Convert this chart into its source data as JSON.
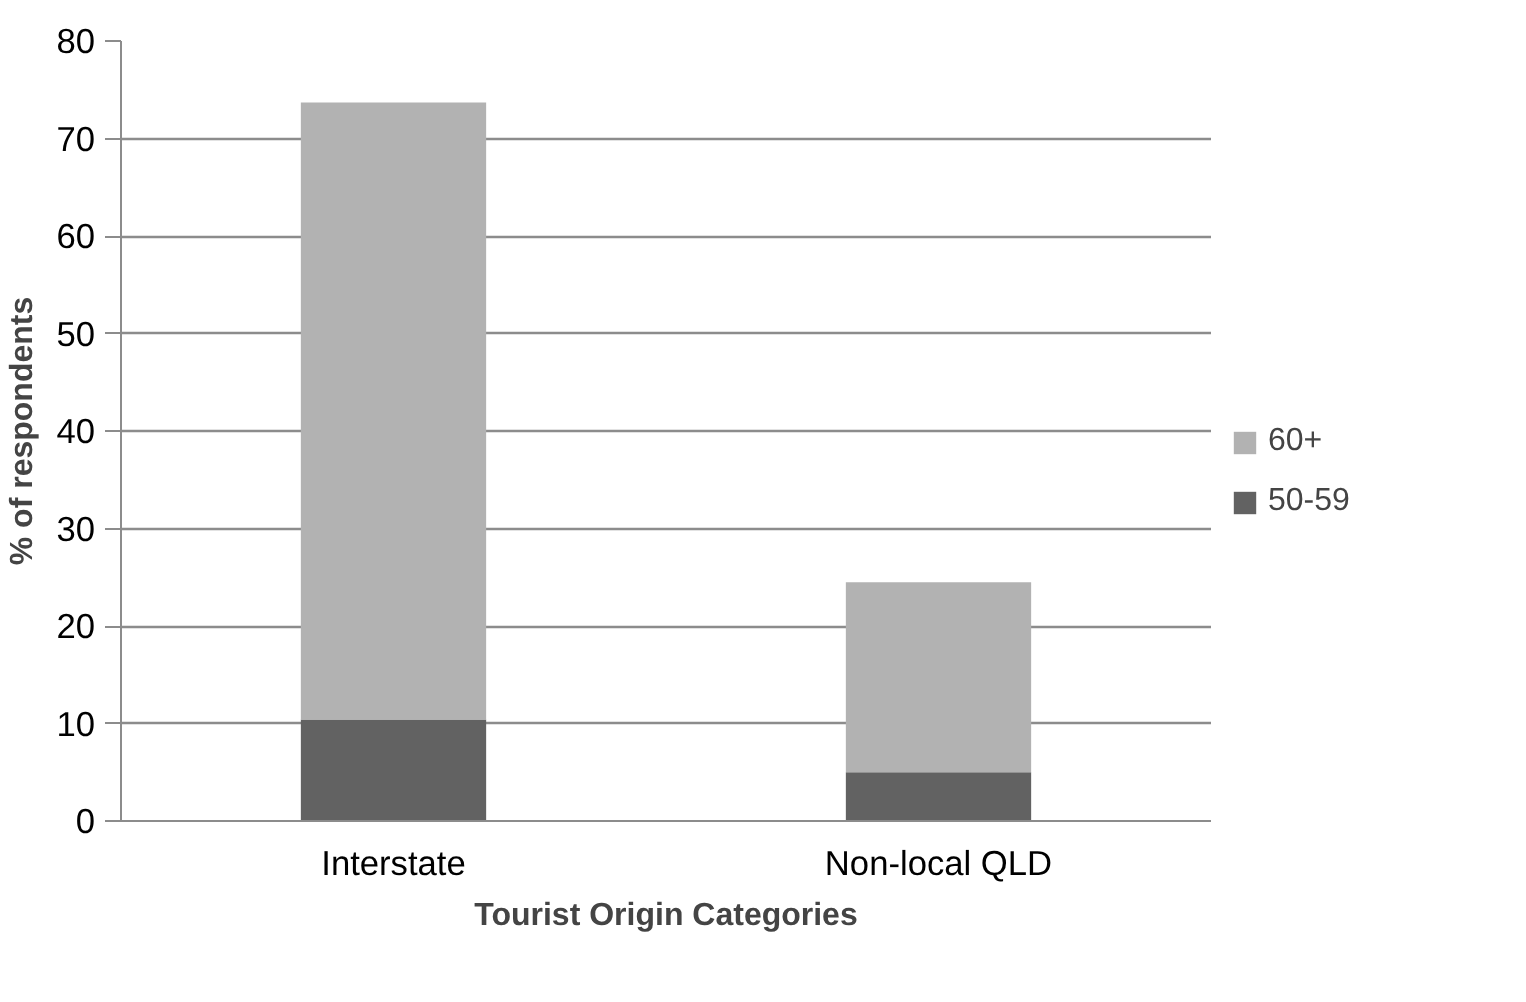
{
  "chart_data": {
    "type": "bar",
    "stacked": true,
    "xlabel": "Tourist Origin Categories",
    "ylabel": "% of respondents",
    "categories": [
      "Interstate",
      "Non-local QLD"
    ],
    "series": [
      {
        "name": "50-59",
        "color": "#626262",
        "values": [
          10.4,
          5.0
        ]
      },
      {
        "name": "60+",
        "color": "#b2b2b2",
        "values": [
          63.3,
          19.5
        ]
      }
    ],
    "ylim": [
      0,
      80
    ],
    "yticks": [
      0,
      10,
      20,
      30,
      40,
      50,
      60,
      70,
      80
    ],
    "grid": "y",
    "legend": "right"
  }
}
